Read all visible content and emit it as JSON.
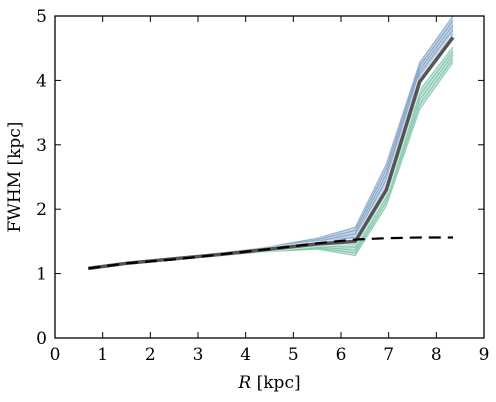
{
  "chart_data": {
    "type": "line",
    "title": "",
    "xlabel_italic": "R",
    "xlabel_rest": " [kpc]",
    "ylabel": "FWHM [kpc]",
    "xlim": [
      0,
      9
    ],
    "ylim": [
      0,
      5
    ],
    "xticks": [
      0,
      1,
      2,
      3,
      4,
      5,
      6,
      7,
      8,
      9
    ],
    "yticks": [
      0,
      1,
      2,
      3,
      4,
      5
    ],
    "grid": false,
    "series": [
      {
        "style": "band-blue",
        "color": "#3d6fa8",
        "x": [
          0.7,
          1.5,
          2.5,
          3.5,
          4.5,
          5.5,
          6.3,
          6.95,
          7.65,
          8.35
        ],
        "y_low": [
          1.07,
          1.15,
          1.22,
          1.29,
          1.37,
          1.45,
          1.52,
          2.38,
          4.05,
          4.72
        ],
        "y_high": [
          1.09,
          1.17,
          1.24,
          1.32,
          1.42,
          1.55,
          1.72,
          2.7,
          4.28,
          5.0
        ]
      },
      {
        "style": "band-green",
        "color": "#3aa57d",
        "x": [
          0.7,
          1.5,
          2.5,
          3.5,
          4.5,
          5.5,
          6.3,
          6.95,
          7.65,
          8.35
        ],
        "y_low": [
          1.06,
          1.14,
          1.21,
          1.28,
          1.34,
          1.38,
          1.28,
          2.05,
          3.55,
          4.28
        ],
        "y_high": [
          1.08,
          1.16,
          1.23,
          1.3,
          1.38,
          1.45,
          1.45,
          2.32,
          3.85,
          4.52
        ]
      },
      {
        "style": "median-gray",
        "color": "#555555",
        "x": [
          0.7,
          1.5,
          2.5,
          3.5,
          4.5,
          5.5,
          6.3,
          6.95,
          7.65,
          8.35
        ],
        "y": [
          1.08,
          1.16,
          1.23,
          1.3,
          1.38,
          1.46,
          1.5,
          2.3,
          3.98,
          4.67
        ]
      },
      {
        "style": "dashed-black",
        "color": "#000000",
        "x": [
          0.7,
          1.5,
          2.5,
          3.5,
          4.5,
          5.5,
          6.3,
          6.95,
          7.65,
          8.35
        ],
        "y": [
          1.08,
          1.16,
          1.22,
          1.3,
          1.38,
          1.47,
          1.53,
          1.55,
          1.56,
          1.56
        ]
      }
    ]
  }
}
